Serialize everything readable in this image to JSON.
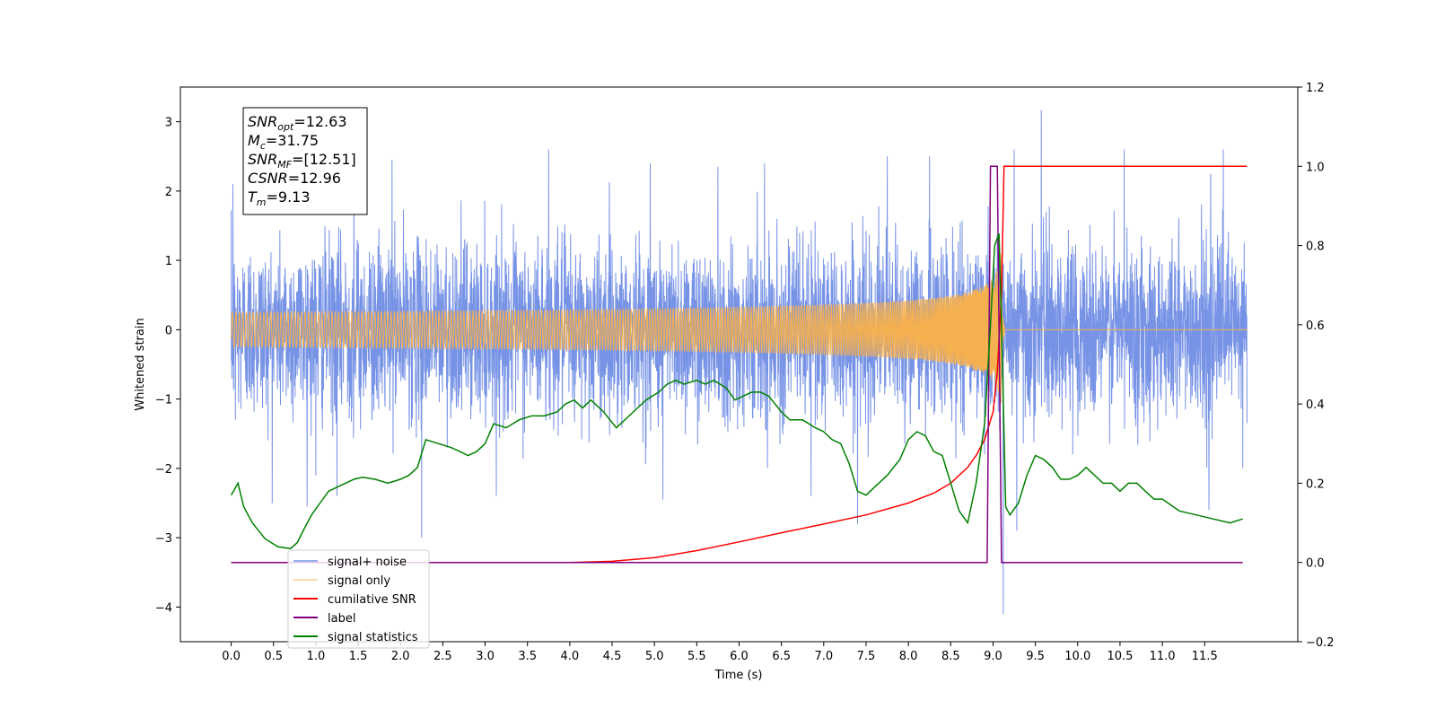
{
  "chart_data": {
    "type": "line",
    "title": "",
    "xlabel": "Time (s)",
    "ylabel": "Whitened strain",
    "y2label": "",
    "xlim": [
      -0.6,
      12.6
    ],
    "ylim": [
      -4.5,
      3.5
    ],
    "y2lim": [
      -0.2,
      1.2
    ],
    "x_ticks": [
      0.0,
      0.5,
      1.0,
      1.5,
      2.0,
      2.5,
      3.0,
      3.5,
      4.0,
      4.5,
      5.0,
      5.5,
      6.0,
      6.5,
      7.0,
      7.5,
      8.0,
      8.5,
      9.0,
      9.5,
      10.0,
      10.5,
      11.0,
      11.5
    ],
    "x_tick_labels": [
      "0.0",
      "0.5",
      "1.0",
      "1.5",
      "2.0",
      "2.5",
      "3.0",
      "3.5",
      "4.0",
      "4.5",
      "5.0",
      "5.5",
      "6.0",
      "6.5",
      "7.0",
      "7.5",
      "8.0",
      "8.5",
      "9.0",
      "9.5",
      "10.0",
      "10.5",
      "11.0",
      "11.5"
    ],
    "y_ticks": [
      3,
      2,
      1,
      0,
      -1,
      -2,
      -3,
      -4
    ],
    "y_tick_labels": [
      "3",
      "2",
      "1",
      "0",
      "−1",
      "−2",
      "−3",
      "−4"
    ],
    "y2_ticks": [
      1.2,
      1.0,
      0.8,
      0.6,
      0.4,
      0.2,
      0.0,
      -0.2
    ],
    "y2_tick_labels": [
      "1.2",
      "1.0",
      "0.8",
      "0.6",
      "0.4",
      "0.2",
      "0.0",
      "−0.2"
    ],
    "grid": false,
    "legend_position": "lower-left",
    "info_box": [
      {
        "base": "SNR",
        "sub": "opt",
        "value": "=12.63"
      },
      {
        "base": "M",
        "sub": "c",
        "value": "=31.75"
      },
      {
        "base": "SNR",
        "sub": "MF",
        "value": "=[12.51]"
      },
      {
        "base": "CSNR",
        "sub": "",
        "value": "=12.96"
      },
      {
        "base": "T",
        "sub": "m",
        "value": "=9.13"
      }
    ],
    "series": [
      {
        "name": "signal+ noise",
        "axis": "left",
        "color": "#7793e6",
        "description_values": {
          "x_range": [
            0.0,
            12.0
          ],
          "typical_range": [
            -1.5,
            1.5
          ],
          "max": 3.17,
          "min": -4.1,
          "min_at": 9.12
        }
      },
      {
        "name": "signal only",
        "axis": "left",
        "color": "#f5b04f",
        "chirp": {
          "x_range": [
            0.0,
            12.0
          ],
          "peak_time": 9.1,
          "peak_amplitude": 1.3
        }
      },
      {
        "name": "cumilative SNR",
        "axis": "right",
        "color": "#ff0000",
        "x": [
          0.0,
          4.0,
          4.5,
          5.0,
          5.5,
          6.0,
          6.5,
          7.0,
          7.5,
          8.0,
          8.3,
          8.5,
          8.7,
          8.8,
          8.9,
          9.0,
          9.05,
          9.1,
          9.13,
          12.0
        ],
        "y": [
          0.0,
          0.0,
          0.003,
          0.012,
          0.03,
          0.052,
          0.075,
          0.097,
          0.12,
          0.15,
          0.175,
          0.2,
          0.24,
          0.27,
          0.31,
          0.38,
          0.48,
          0.68,
          1.0,
          1.0
        ]
      },
      {
        "name": "label",
        "axis": "right",
        "color": "#800080",
        "x": [
          0.0,
          8.93,
          8.97,
          9.05,
          9.1,
          9.13,
          11.95
        ],
        "y": [
          0.0,
          0.0,
          1.0,
          1.0,
          0.0,
          0.0,
          0.0
        ]
      },
      {
        "name": "signal statistics",
        "axis": "right",
        "color": "#008000",
        "x": [
          0.0,
          0.08,
          0.15,
          0.25,
          0.4,
          0.55,
          0.7,
          0.78,
          0.85,
          0.95,
          1.05,
          1.15,
          1.25,
          1.35,
          1.45,
          1.55,
          1.7,
          1.85,
          2.0,
          2.1,
          2.2,
          2.3,
          2.45,
          2.6,
          2.7,
          2.8,
          2.9,
          3.0,
          3.1,
          3.25,
          3.4,
          3.55,
          3.7,
          3.85,
          3.95,
          4.05,
          4.15,
          4.25,
          4.4,
          4.55,
          4.65,
          4.75,
          4.9,
          5.05,
          5.15,
          5.25,
          5.35,
          5.5,
          5.6,
          5.7,
          5.85,
          5.95,
          6.05,
          6.15,
          6.25,
          6.35,
          6.5,
          6.6,
          6.75,
          6.9,
          7.0,
          7.1,
          7.2,
          7.3,
          7.4,
          7.5,
          7.6,
          7.75,
          7.9,
          8.0,
          8.1,
          8.2,
          8.3,
          8.4,
          8.5,
          8.6,
          8.7,
          8.8,
          8.9,
          8.97,
          9.02,
          9.07,
          9.1,
          9.15,
          9.2,
          9.3,
          9.4,
          9.5,
          9.6,
          9.7,
          9.8,
          9.9,
          10.0,
          10.1,
          10.2,
          10.3,
          10.4,
          10.5,
          10.6,
          10.7,
          10.8,
          10.9,
          11.0,
          11.2,
          11.4,
          11.6,
          11.8,
          11.95
        ],
        "y": [
          0.17,
          0.2,
          0.14,
          0.1,
          0.06,
          0.04,
          0.035,
          0.05,
          0.08,
          0.12,
          0.15,
          0.18,
          0.19,
          0.2,
          0.21,
          0.215,
          0.21,
          0.2,
          0.21,
          0.22,
          0.24,
          0.31,
          0.3,
          0.29,
          0.28,
          0.27,
          0.28,
          0.3,
          0.35,
          0.34,
          0.36,
          0.37,
          0.37,
          0.38,
          0.4,
          0.41,
          0.39,
          0.41,
          0.38,
          0.34,
          0.36,
          0.38,
          0.41,
          0.43,
          0.45,
          0.46,
          0.45,
          0.46,
          0.45,
          0.46,
          0.44,
          0.41,
          0.42,
          0.43,
          0.43,
          0.42,
          0.38,
          0.36,
          0.36,
          0.34,
          0.33,
          0.31,
          0.3,
          0.25,
          0.18,
          0.17,
          0.19,
          0.22,
          0.26,
          0.31,
          0.33,
          0.32,
          0.28,
          0.27,
          0.2,
          0.13,
          0.1,
          0.2,
          0.35,
          0.6,
          0.8,
          0.83,
          0.6,
          0.14,
          0.12,
          0.15,
          0.22,
          0.27,
          0.26,
          0.24,
          0.21,
          0.21,
          0.22,
          0.24,
          0.22,
          0.2,
          0.2,
          0.18,
          0.2,
          0.2,
          0.18,
          0.16,
          0.16,
          0.13,
          0.12,
          0.11,
          0.1,
          0.11
        ]
      }
    ]
  }
}
